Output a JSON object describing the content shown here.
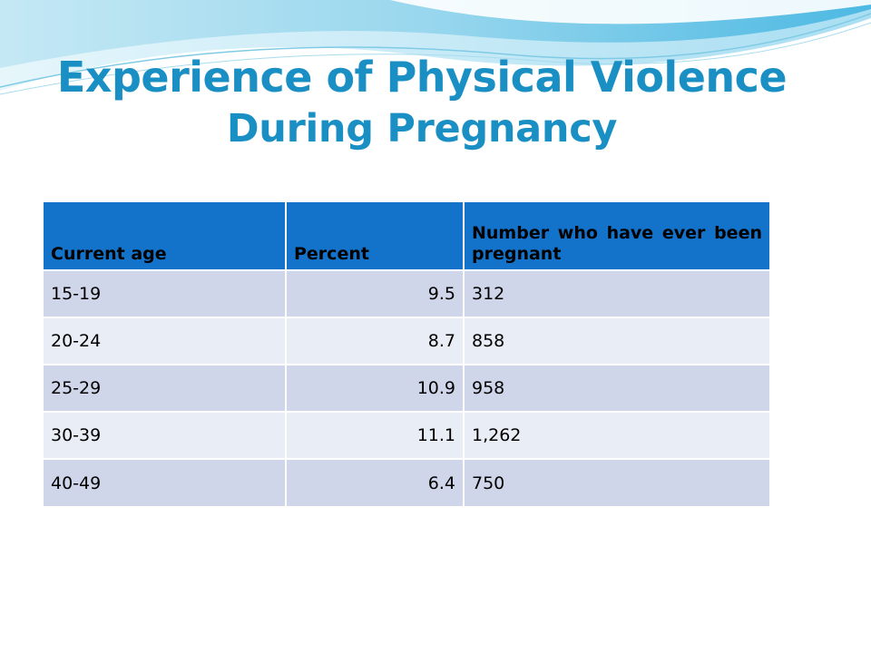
{
  "slide": {
    "title_line1": "Experience of Physical Violence",
    "title_line2": "During Pregnancy"
  },
  "table": {
    "headers": [
      "Current age",
      "Percent",
      "Number who have ever been pregnant"
    ],
    "rows": [
      {
        "age": "15-19",
        "percent": "9.5",
        "number": "312"
      },
      {
        "age": "20-24",
        "percent": "8.7",
        "number": "858"
      },
      {
        "age": "25-29",
        "percent": "10.9",
        "number": "958"
      },
      {
        "age": "30-39",
        "percent": "11.1",
        "number": "1,262"
      },
      {
        "age": "40-49",
        "percent": "6.4",
        "number": "750"
      }
    ]
  },
  "colors": {
    "title": "#1a8fc4",
    "header_bg": "#1372c9",
    "row_dark": "#cfd6ea",
    "row_light": "#e9edf5"
  }
}
